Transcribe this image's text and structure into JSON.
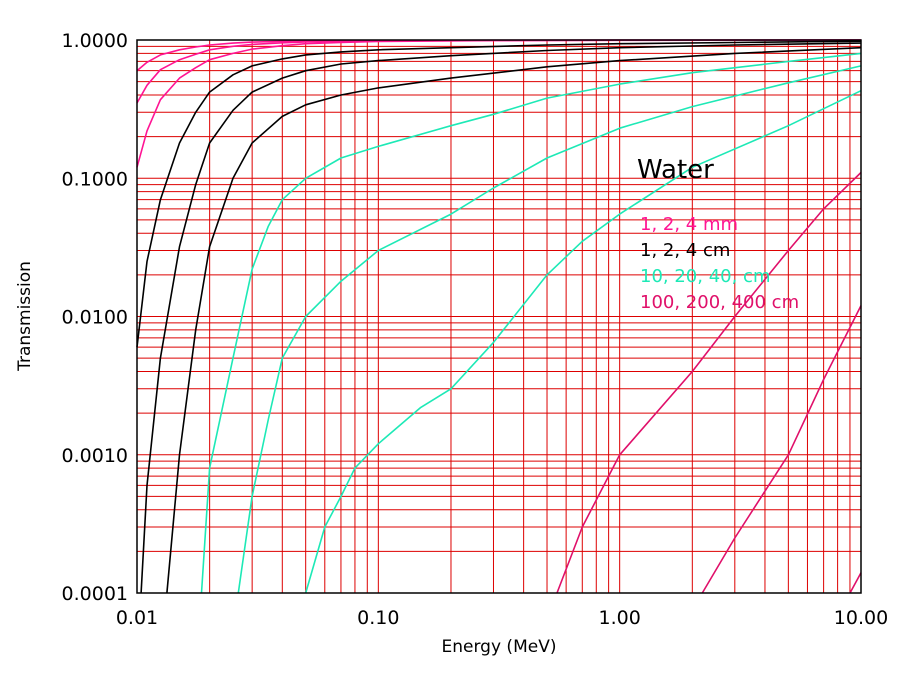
{
  "chart_data": {
    "type": "line",
    "title": "",
    "xlabel": "Energy (MeV)",
    "ylabel": "Transmission",
    "xscale": "log",
    "yscale": "log",
    "xlim": [
      0.01,
      10.0
    ],
    "ylim": [
      0.0001,
      1.0
    ],
    "grid": true,
    "grid_color": "#dd0000",
    "x_ticks": [
      0.01,
      0.1,
      1.0,
      10.0
    ],
    "x_tick_labels": [
      "0.01",
      "0.10",
      "1.00",
      "10.00"
    ],
    "y_ticks": [
      0.0001,
      0.001,
      0.01,
      0.1,
      1.0
    ],
    "y_tick_labels": [
      "0.0001",
      "0.0010",
      "0.0100",
      "0.1000",
      "1.0000"
    ],
    "annotation": "Water",
    "legend_lines": [
      {
        "text": "1, 2, 4 mm",
        "color": "#ff1493"
      },
      {
        "text": "1, 2, 4 cm",
        "color": "#000000"
      },
      {
        "text": "10, 20, 40, cm",
        "color": "#1de9b6"
      },
      {
        "text": "100, 200, 400 cm",
        "color": "#e0106a"
      }
    ],
    "series": [
      {
        "color": "#ff1493",
        "points": [
          [
            0.01,
            0.12
          ],
          [
            0.011,
            0.22
          ],
          [
            0.0125,
            0.37
          ],
          [
            0.015,
            0.53
          ],
          [
            0.0175,
            0.63
          ],
          [
            0.02,
            0.72
          ],
          [
            0.025,
            0.8
          ],
          [
            0.03,
            0.86
          ],
          [
            0.04,
            0.91
          ],
          [
            0.05,
            0.94
          ],
          [
            0.07,
            0.96
          ],
          [
            0.1,
            0.975
          ],
          [
            0.3,
            0.99
          ],
          [
            1.0,
            0.995
          ],
          [
            10.0,
            0.998
          ]
        ]
      },
      {
        "color": "#ff1493",
        "points": [
          [
            0.01,
            0.35
          ],
          [
            0.011,
            0.47
          ],
          [
            0.0125,
            0.61
          ],
          [
            0.015,
            0.72
          ],
          [
            0.0175,
            0.79
          ],
          [
            0.02,
            0.85
          ],
          [
            0.025,
            0.9
          ],
          [
            0.03,
            0.93
          ],
          [
            0.04,
            0.955
          ],
          [
            0.05,
            0.968
          ],
          [
            0.07,
            0.978
          ],
          [
            0.1,
            0.985
          ],
          [
            0.3,
            0.992
          ],
          [
            1.0,
            0.996
          ],
          [
            10.0,
            0.999
          ]
        ]
      },
      {
        "color": "#ff1493",
        "points": [
          [
            0.01,
            0.6
          ],
          [
            0.011,
            0.69
          ],
          [
            0.0125,
            0.78
          ],
          [
            0.015,
            0.85
          ],
          [
            0.0175,
            0.89
          ],
          [
            0.02,
            0.92
          ],
          [
            0.025,
            0.95
          ],
          [
            0.03,
            0.965
          ],
          [
            0.04,
            0.978
          ],
          [
            0.05,
            0.984
          ],
          [
            0.07,
            0.989
          ],
          [
            0.1,
            0.992
          ],
          [
            0.3,
            0.996
          ],
          [
            1.0,
            0.998
          ],
          [
            10.0,
            1.0
          ]
        ]
      },
      {
        "color": "#000000",
        "points": [
          [
            0.01,
            0.006
          ],
          [
            0.011,
            0.025
          ],
          [
            0.0125,
            0.07
          ],
          [
            0.015,
            0.18
          ],
          [
            0.0175,
            0.3
          ],
          [
            0.02,
            0.42
          ],
          [
            0.025,
            0.56
          ],
          [
            0.03,
            0.65
          ],
          [
            0.04,
            0.73
          ],
          [
            0.05,
            0.78
          ],
          [
            0.07,
            0.82
          ],
          [
            0.1,
            0.85
          ],
          [
            0.2,
            0.88
          ],
          [
            0.5,
            0.92
          ],
          [
            1.0,
            0.94
          ],
          [
            3.0,
            0.96
          ],
          [
            10.0,
            0.98
          ]
        ]
      },
      {
        "color": "#000000",
        "points": [
          [
            0.0104,
            0.0001
          ],
          [
            0.011,
            0.0006
          ],
          [
            0.0125,
            0.005
          ],
          [
            0.015,
            0.032
          ],
          [
            0.0175,
            0.09
          ],
          [
            0.02,
            0.18
          ],
          [
            0.025,
            0.31
          ],
          [
            0.03,
            0.42
          ],
          [
            0.04,
            0.53
          ],
          [
            0.05,
            0.6
          ],
          [
            0.07,
            0.67
          ],
          [
            0.1,
            0.71
          ],
          [
            0.2,
            0.77
          ],
          [
            0.5,
            0.84
          ],
          [
            1.0,
            0.88
          ],
          [
            3.0,
            0.92
          ],
          [
            10.0,
            0.95
          ]
        ]
      },
      {
        "color": "#000000",
        "points": [
          [
            0.0133,
            0.0001
          ],
          [
            0.015,
            0.001
          ],
          [
            0.0175,
            0.008
          ],
          [
            0.02,
            0.032
          ],
          [
            0.025,
            0.1
          ],
          [
            0.03,
            0.18
          ],
          [
            0.04,
            0.28
          ],
          [
            0.05,
            0.34
          ],
          [
            0.07,
            0.4
          ],
          [
            0.1,
            0.45
          ],
          [
            0.2,
            0.53
          ],
          [
            0.5,
            0.64
          ],
          [
            1.0,
            0.71
          ],
          [
            3.0,
            0.8
          ],
          [
            10.0,
            0.88
          ]
        ]
      },
      {
        "color": "#1de9b6",
        "points": [
          [
            0.0185,
            0.0001
          ],
          [
            0.02,
            0.0008
          ],
          [
            0.025,
            0.005
          ],
          [
            0.03,
            0.022
          ],
          [
            0.035,
            0.045
          ],
          [
            0.04,
            0.07
          ],
          [
            0.05,
            0.1
          ],
          [
            0.07,
            0.14
          ],
          [
            0.1,
            0.17
          ],
          [
            0.2,
            0.24
          ],
          [
            0.3,
            0.29
          ],
          [
            0.5,
            0.38
          ],
          [
            1.0,
            0.48
          ],
          [
            2.0,
            0.58
          ],
          [
            5.0,
            0.7
          ],
          [
            10.0,
            0.8
          ]
        ]
      },
      {
        "color": "#1de9b6",
        "points": [
          [
            0.0263,
            0.0001
          ],
          [
            0.03,
            0.0005
          ],
          [
            0.035,
            0.0018
          ],
          [
            0.04,
            0.005
          ],
          [
            0.05,
            0.01
          ],
          [
            0.07,
            0.018
          ],
          [
            0.1,
            0.03
          ],
          [
            0.2,
            0.055
          ],
          [
            0.3,
            0.085
          ],
          [
            0.5,
            0.14
          ],
          [
            1.0,
            0.23
          ],
          [
            2.0,
            0.33
          ],
          [
            5.0,
            0.49
          ],
          [
            10.0,
            0.65
          ]
        ]
      },
      {
        "color": "#1de9b6",
        "points": [
          [
            0.05,
            0.0001
          ],
          [
            0.06,
            0.0003
          ],
          [
            0.07,
            0.0005
          ],
          [
            0.08,
            0.0008
          ],
          [
            0.1,
            0.0012
          ],
          [
            0.15,
            0.0022
          ],
          [
            0.2,
            0.003
          ],
          [
            0.3,
            0.0065
          ],
          [
            0.5,
            0.02
          ],
          [
            0.7,
            0.035
          ],
          [
            1.0,
            0.055
          ],
          [
            2.0,
            0.12
          ],
          [
            5.0,
            0.24
          ],
          [
            10.0,
            0.43
          ]
        ]
      },
      {
        "color": "#e0106a",
        "points": [
          [
            0.55,
            0.0001
          ],
          [
            0.7,
            0.0003
          ],
          [
            1.0,
            0.001
          ],
          [
            2.0,
            0.004
          ],
          [
            3.0,
            0.01
          ],
          [
            5.0,
            0.03
          ],
          [
            7.0,
            0.06
          ],
          [
            10.0,
            0.11
          ]
        ]
      },
      {
        "color": "#e0106a",
        "points": [
          [
            2.2,
            0.0001
          ],
          [
            3.0,
            0.00025
          ],
          [
            5.0,
            0.001
          ],
          [
            7.0,
            0.0035
          ],
          [
            10.0,
            0.012
          ]
        ]
      },
      {
        "color": "#e0106a",
        "points": [
          [
            9.0,
            0.0001
          ],
          [
            10.0,
            0.00014
          ]
        ]
      }
    ]
  }
}
